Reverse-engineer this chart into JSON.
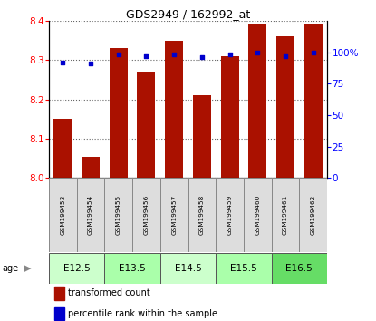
{
  "title": "GDS2949 / 162992_at",
  "samples": [
    "GSM199453",
    "GSM199454",
    "GSM199455",
    "GSM199456",
    "GSM199457",
    "GSM199458",
    "GSM199459",
    "GSM199460",
    "GSM199461",
    "GSM199462"
  ],
  "transformed_counts": [
    8.15,
    8.055,
    8.33,
    8.27,
    8.35,
    8.21,
    8.31,
    8.39,
    8.36,
    8.39
  ],
  "percentile_ranks": [
    92,
    91,
    98,
    97,
    98,
    96,
    98,
    100,
    97,
    100
  ],
  "age_groups": [
    {
      "label": "E12.5",
      "start": 0,
      "end": 2,
      "color": "#ccffcc"
    },
    {
      "label": "E13.5",
      "start": 2,
      "end": 4,
      "color": "#aaffaa"
    },
    {
      "label": "E14.5",
      "start": 4,
      "end": 6,
      "color": "#ccffcc"
    },
    {
      "label": "E15.5",
      "start": 6,
      "end": 8,
      "color": "#aaffaa"
    },
    {
      "label": "E16.5",
      "start": 8,
      "end": 10,
      "color": "#66dd66"
    }
  ],
  "ylim_left": [
    8.0,
    8.4
  ],
  "ylim_right": [
    0,
    100
  ],
  "yticks_left": [
    8.0,
    8.1,
    8.2,
    8.3,
    8.4
  ],
  "yticks_right": [
    0,
    25,
    50,
    75,
    100
  ],
  "bar_color": "#aa1100",
  "dot_color": "#0000cc",
  "bar_bottom": 8.0,
  "bar_width": 0.65,
  "legend_items": [
    {
      "label": "transformed count",
      "color": "#aa1100"
    },
    {
      "label": "percentile rank within the sample",
      "color": "#0000cc"
    }
  ],
  "grid_style": "dotted",
  "grid_color": "#000000",
  "grid_alpha": 0.7
}
